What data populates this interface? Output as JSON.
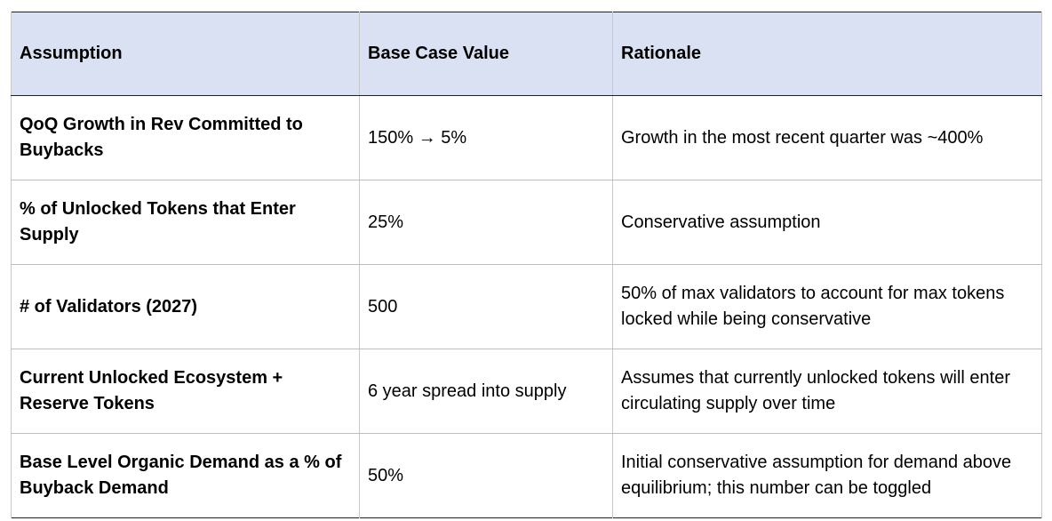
{
  "table": {
    "headers": [
      "Assumption",
      "Base Case Value",
      "Rationale"
    ],
    "rows": [
      {
        "assumption": "QoQ Growth in Rev Committed to Buybacks",
        "value": "150% → 5%",
        "rationale": "Growth in the most recent quarter was ~400%"
      },
      {
        "assumption": "% of Unlocked Tokens that Enter Supply",
        "value": "25%",
        "rationale": "Conservative assumption"
      },
      {
        "assumption": "# of Validators (2027)",
        "value": "500",
        "rationale": "50% of max validators to account for max tokens locked while being conservative"
      },
      {
        "assumption": "Current Unlocked Ecosystem + Reserve Tokens",
        "value": "6 year spread into supply",
        "rationale": "Assumes that currently unlocked tokens will enter circulating supply over time"
      },
      {
        "assumption": "Base Level Organic Demand as a % of Buyback Demand",
        "value": "50%",
        "rationale": "Initial conservative assumption for demand above equilibrium; this number can be toggled"
      }
    ]
  }
}
